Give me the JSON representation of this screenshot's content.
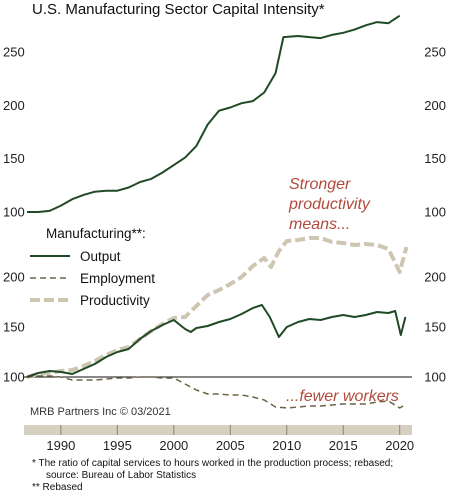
{
  "chart_data": [
    {
      "type": "line",
      "title": "U.S. Manufacturing Sector Capital Intensity*",
      "xlim": [
        1987,
        2021
      ],
      "ylim": [
        90,
        290
      ],
      "ticks": [
        100,
        150,
        200,
        250
      ],
      "series": [
        {
          "color": "#1f4a26",
          "style": "solid",
          "points": [
            [
              1987,
              100
            ],
            [
              1988,
              100
            ],
            [
              1989,
              101
            ],
            [
              1990,
              106
            ],
            [
              1991,
              112
            ],
            [
              1992,
              116
            ],
            [
              1993,
              119
            ],
            [
              1994,
              120
            ],
            [
              1995,
              120
            ],
            [
              1996,
              123
            ],
            [
              1997,
              128
            ],
            [
              1998,
              131
            ],
            [
              1999,
              137
            ],
            [
              2000,
              144
            ],
            [
              2001,
              151
            ],
            [
              2002,
              162
            ],
            [
              2003,
              182
            ],
            [
              2004,
              195
            ],
            [
              2005,
              198
            ],
            [
              2006,
              202
            ],
            [
              2007,
              204
            ],
            [
              2008,
              212
            ],
            [
              2009,
              230
            ],
            [
              2009.7,
              264
            ],
            [
              2011,
              265
            ],
            [
              2012,
              264
            ],
            [
              2013,
              263
            ],
            [
              2014,
              266
            ],
            [
              2015,
              268
            ],
            [
              2016,
              271
            ],
            [
              2017,
              275
            ],
            [
              2018,
              278
            ],
            [
              2019,
              277
            ],
            [
              2020,
              284
            ]
          ]
        }
      ]
    },
    {
      "type": "line",
      "xlim": [
        1987,
        2021
      ],
      "ylim": [
        75,
        270
      ],
      "ticks": [
        100,
        150,
        200
      ],
      "x_ticks": [
        1990,
        1995,
        2000,
        2005,
        2010,
        2015,
        2020
      ],
      "series": [
        {
          "name": "Output",
          "color": "#1f4a26",
          "style": "solid",
          "points": [
            [
              1987,
              100
            ],
            [
              1988,
              104
            ],
            [
              1989,
              106
            ],
            [
              1990,
              105
            ],
            [
              1991,
              103
            ],
            [
              1992,
              108
            ],
            [
              1993,
              113
            ],
            [
              1994,
              120
            ],
            [
              1995,
              125
            ],
            [
              1996,
              128
            ],
            [
              1997,
              138
            ],
            [
              1998,
              146
            ],
            [
              1999,
              152
            ],
            [
              2000,
              157
            ],
            [
              2001,
              148
            ],
            [
              2001.5,
              145
            ],
            [
              2002,
              149
            ],
            [
              2003,
              151
            ],
            [
              2004,
              155
            ],
            [
              2005,
              158
            ],
            [
              2006,
              163
            ],
            [
              2007,
              169
            ],
            [
              2007.8,
              172
            ],
            [
              2008.5,
              160
            ],
            [
              2009.3,
              140
            ],
            [
              2010,
              150
            ],
            [
              2011,
              155
            ],
            [
              2012,
              158
            ],
            [
              2013,
              157
            ],
            [
              2014,
              160
            ],
            [
              2015,
              162
            ],
            [
              2016,
              160
            ],
            [
              2017,
              162
            ],
            [
              2018,
              165
            ],
            [
              2019,
              164
            ],
            [
              2019.6,
              166
            ],
            [
              2020.1,
              142
            ],
            [
              2020.5,
              160
            ]
          ]
        },
        {
          "name": "Employment",
          "color": "#6b6245",
          "style": "dashed",
          "points": [
            [
              1987,
              100
            ],
            [
              1988,
              101
            ],
            [
              1989,
              101
            ],
            [
              1990,
              100
            ],
            [
              1991,
              97
            ],
            [
              1992,
              97
            ],
            [
              1993,
              97
            ],
            [
              1994,
              98
            ],
            [
              1995,
              99
            ],
            [
              1996,
              99
            ],
            [
              1997,
              100
            ],
            [
              1998,
              100
            ],
            [
              1999,
              99
            ],
            [
              2000,
              99
            ],
            [
              2001,
              93
            ],
            [
              2002,
              87
            ],
            [
              2003,
              83
            ],
            [
              2004,
              83
            ],
            [
              2005,
              82
            ],
            [
              2006,
              82
            ],
            [
              2007,
              80
            ],
            [
              2008,
              77
            ],
            [
              2009,
              70
            ],
            [
              2010,
              69
            ],
            [
              2011,
              70
            ],
            [
              2012,
              71
            ],
            [
              2013,
              71
            ],
            [
              2014,
              72
            ],
            [
              2015,
              73
            ],
            [
              2016,
              73
            ],
            [
              2017,
              73
            ],
            [
              2018,
              75
            ],
            [
              2019,
              76
            ],
            [
              2020,
              69
            ],
            [
              2020.6,
              73
            ]
          ]
        },
        {
          "name": "Productivity",
          "color": "#cfc6b2",
          "style": "dashed-thick",
          "points": [
            [
              1987,
              100
            ],
            [
              1988,
              103
            ],
            [
              1989,
              104
            ],
            [
              1990,
              106
            ],
            [
              1991,
              107
            ],
            [
              1992,
              111
            ],
            [
              1993,
              116
            ],
            [
              1994,
              122
            ],
            [
              1995,
              127
            ],
            [
              1996,
              130
            ],
            [
              1997,
              138
            ],
            [
              1998,
              146
            ],
            [
              1999,
              153
            ],
            [
              2000,
              159
            ],
            [
              2001,
              160
            ],
            [
              2002,
              171
            ],
            [
              2003,
              182
            ],
            [
              2004,
              187
            ],
            [
              2005,
              193
            ],
            [
              2006,
              200
            ],
            [
              2007,
              211
            ],
            [
              2008,
              219
            ],
            [
              2008.6,
              210
            ],
            [
              2009.3,
              226
            ],
            [
              2010,
              236
            ],
            [
              2011,
              237
            ],
            [
              2012,
              239
            ],
            [
              2013,
              239
            ],
            [
              2014,
              235
            ],
            [
              2015,
              234
            ],
            [
              2016,
              232
            ],
            [
              2017,
              233
            ],
            [
              2018,
              232
            ],
            [
              2019,
              228
            ],
            [
              2020,
              205
            ],
            [
              2020.6,
              230
            ]
          ]
        }
      ]
    }
  ],
  "legend": {
    "title": "Manufacturing**:"
  },
  "annotations": {
    "top": [
      "Stronger",
      "productivity",
      "means..."
    ],
    "bottom": "...fewer workers"
  },
  "credit": "MRB Partners Inc © 03/2021",
  "footnotes": [
    "*  The ratio of capital services to hours worked in the production process; rebased;",
    "source: Bureau of Labor Statistics",
    "** Rebased"
  ]
}
